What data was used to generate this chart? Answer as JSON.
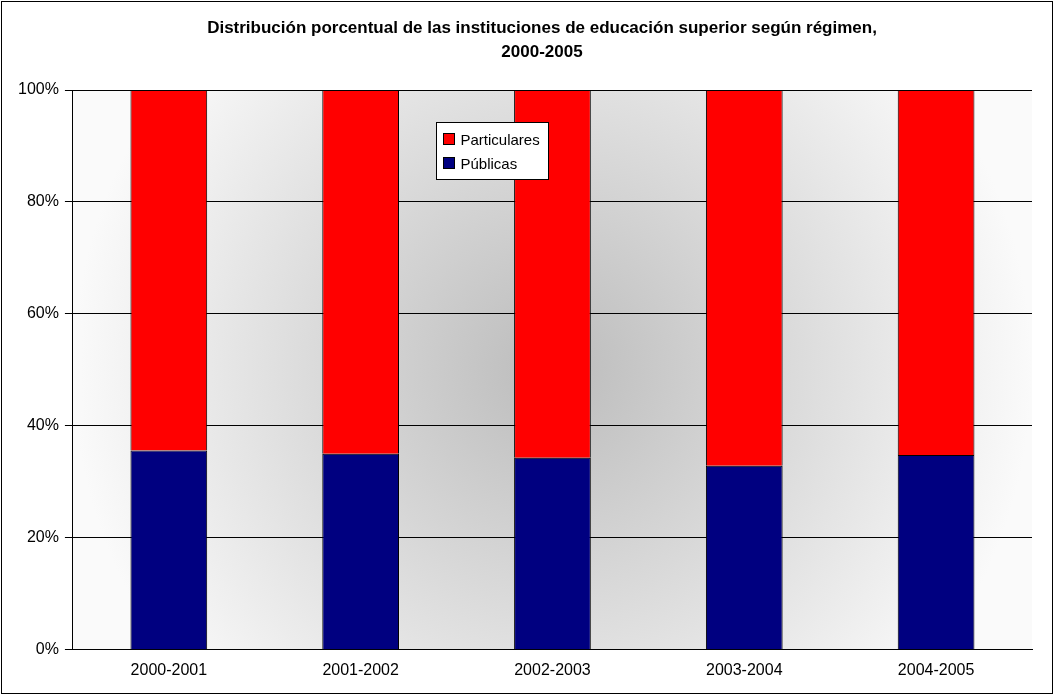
{
  "chart_data": {
    "type": "bar",
    "title": "Distribución porcentual de las instituciones de educación superior según régimen, 2000-2005",
    "categories": [
      "2000-2001",
      "2001-2002",
      "2002-2003",
      "2003-2004",
      "2004-2005"
    ],
    "series": [
      {
        "name": "Públicas",
        "color": "#000080",
        "values": [
          35.6,
          35.0,
          34.3,
          32.9,
          34.8
        ]
      },
      {
        "name": "Particulares",
        "color": "#ff0000",
        "values": [
          64.4,
          65.0,
          65.7,
          67.1,
          65.2
        ]
      }
    ],
    "stacked": true,
    "ylim": [
      0,
      100
    ],
    "yticks": [
      {
        "value": 0,
        "label": "0%"
      },
      {
        "value": 20,
        "label": "20%"
      },
      {
        "value": 40,
        "label": "40%"
      },
      {
        "value": 60,
        "label": "60%"
      },
      {
        "value": 80,
        "label": "80%"
      },
      {
        "value": 100,
        "label": "100%"
      }
    ],
    "grid": "y",
    "legend": "top"
  }
}
